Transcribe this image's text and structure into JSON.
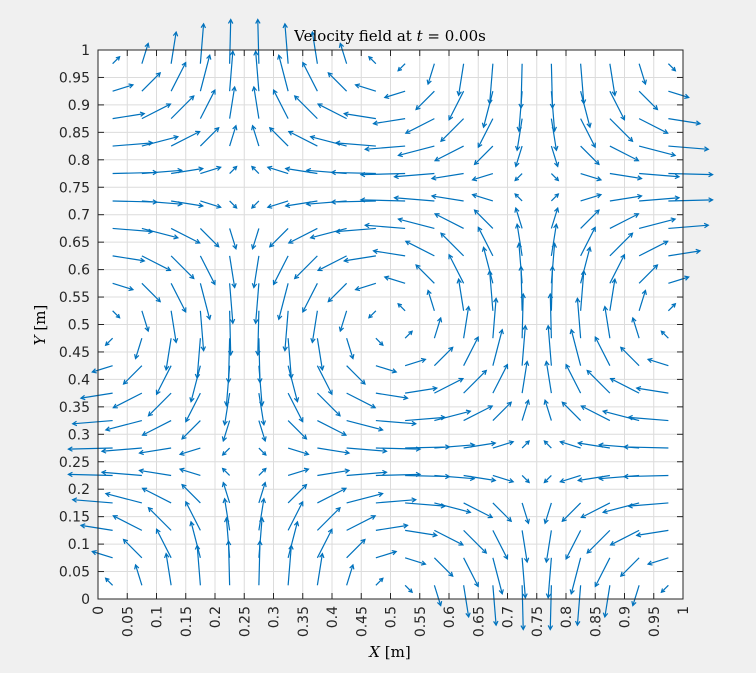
{
  "chart_data": {
    "type": "quiver",
    "title": {
      "prefix": "Velocity field at ",
      "variable": "t",
      "suffix": " = 0.00s"
    },
    "xlabel": {
      "variable": "X",
      "unit": "[m]"
    },
    "ylabel": {
      "variable": "Y",
      "unit": "[m]"
    },
    "xlim": [
      0,
      1
    ],
    "ylim": [
      0,
      1
    ],
    "xticks": [
      "0",
      "0.05",
      "0.1",
      "0.15",
      "0.2",
      "0.25",
      "0.3",
      "0.35",
      "0.4",
      "0.45",
      "0.5",
      "0.55",
      "0.6",
      "0.65",
      "0.7",
      "0.75",
      "0.8",
      "0.85",
      "0.9",
      "0.95",
      "1"
    ],
    "yticks": [
      "0",
      "0.05",
      "0.1",
      "0.15",
      "0.2",
      "0.25",
      "0.3",
      "0.35",
      "0.4",
      "0.45",
      "0.5",
      "0.55",
      "0.6",
      "0.65",
      "0.7",
      "0.75",
      "0.8",
      "0.85",
      "0.9",
      "0.95",
      "1"
    ],
    "grid": true,
    "field": {
      "u": "-cos(2*pi*x)*sin(2*pi*y)",
      "v": "sin(2*pi*x)*cos(2*pi*y)",
      "sample_points": [
        0.025,
        0.075,
        0.125,
        0.175,
        0.225,
        0.275,
        0.325,
        0.375,
        0.425,
        0.475,
        0.525,
        0.575,
        0.625,
        0.675,
        0.725,
        0.775,
        0.825,
        0.875,
        0.925,
        0.975
      ],
      "max_speed": 1.0
    },
    "arrow_color": "#0072BD"
  }
}
